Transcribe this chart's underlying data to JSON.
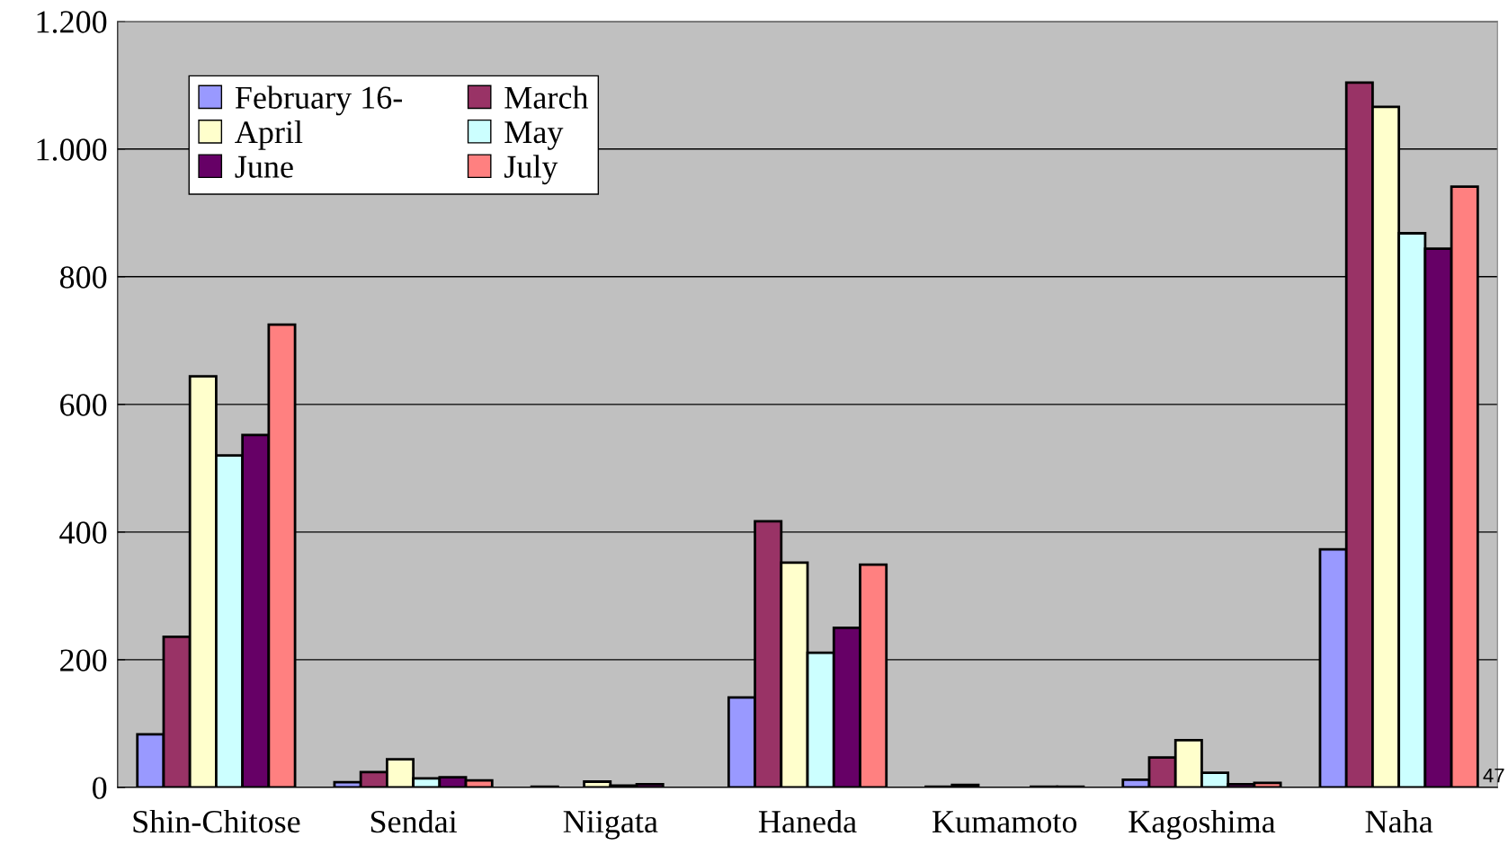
{
  "chart_data": {
    "type": "bar",
    "categories": [
      "Shin-Chitose",
      "Sendai",
      "Niigata",
      "Haneda",
      "Kumamoto",
      "Kagoshima",
      "Naha"
    ],
    "series": [
      {
        "name": "February 16-",
        "color": "#9999ff",
        "values": [
          83,
          8,
          1,
          141,
          1,
          12,
          373
        ]
      },
      {
        "name": "March",
        "color": "#993366",
        "values": [
          236,
          24,
          null,
          417,
          4,
          47,
          1104
        ]
      },
      {
        "name": "April",
        "color": "#ffffcc",
        "values": [
          644,
          44,
          9,
          352,
          null,
          74,
          1066
        ]
      },
      {
        "name": "May",
        "color": "#ccffff",
        "values": [
          520,
          14,
          3,
          211,
          null,
          23,
          868
        ]
      },
      {
        "name": "June",
        "color": "#660066",
        "values": [
          552,
          16,
          5,
          250,
          1,
          5,
          844
        ]
      },
      {
        "name": "July",
        "color": "#ff8080",
        "values": [
          725,
          11,
          null,
          349,
          1,
          7,
          941
        ]
      }
    ],
    "ylim": [
      0,
      1200
    ],
    "yticks": [
      0,
      200,
      400,
      600,
      800,
      {
        "value": 1000,
        "label": "1.000"
      },
      {
        "value": 1200,
        "label": "1.200"
      }
    ],
    "grid": "y",
    "legend": "top left",
    "annotations": [
      "47"
    ]
  }
}
